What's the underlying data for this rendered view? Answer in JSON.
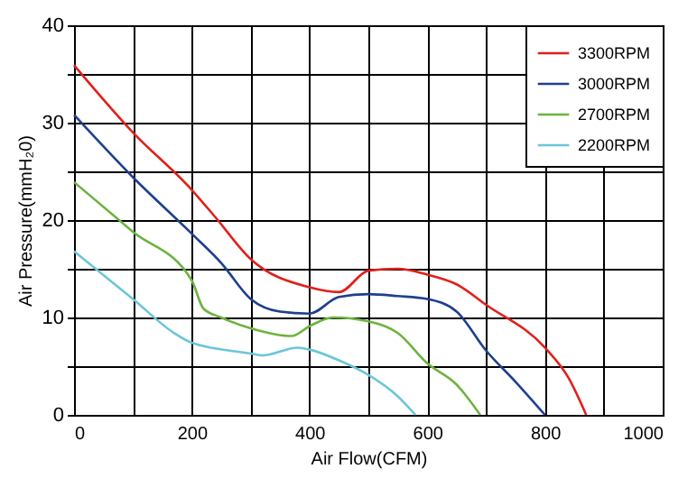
{
  "chart_data": {
    "type": "line",
    "xlabel": "Air Flow(CFM)",
    "ylabel": "Air Pressure(mmH₂0)",
    "xlim": [
      0,
      1000
    ],
    "ylim": [
      0,
      40
    ],
    "xticks": [
      0,
      {
        "value": 100,
        "label": null
      },
      200,
      {
        "value": 300,
        "label": null
      },
      400,
      {
        "value": 500,
        "label": null
      },
      600,
      {
        "value": 700,
        "label": null
      },
      800,
      {
        "value": 900,
        "label": null
      },
      1000
    ],
    "yticks": [
      0,
      {
        "value": 5,
        "label": null
      },
      10,
      {
        "value": 15,
        "label": null
      },
      20,
      {
        "value": 25,
        "label": null
      },
      30,
      {
        "value": 35,
        "label": null
      },
      40
    ],
    "grid": true,
    "legend": "top right",
    "marker": "none",
    "line_style": "solid",
    "series": [
      {
        "name": "3300RPM",
        "color": "#e0201b",
        "x": [
          0,
          100,
          200,
          240,
          300,
          400,
          450,
          500,
          550,
          600,
          650,
          700,
          800,
          840,
          870
        ],
        "values": [
          35.9,
          29,
          23.1,
          20.3,
          16,
          13.1,
          12.6,
          14.8,
          15,
          14.4,
          13.4,
          11.3,
          6.9,
          3.8,
          0
        ]
      },
      {
        "name": "3000RPM",
        "color": "#1f3f8f",
        "x": [
          0,
          100,
          200,
          250,
          300,
          350,
          400,
          450,
          500,
          550,
          600,
          650,
          700,
          750,
          800
        ],
        "values": [
          30.8,
          24.4,
          18.6,
          15.6,
          11.9,
          10.6,
          10.4,
          12.1,
          12.4,
          12.2,
          11.9,
          10.6,
          6.6,
          3.4,
          0
        ]
      },
      {
        "name": "2700RPM",
        "color": "#6db33f",
        "x": [
          0,
          100,
          200,
          220,
          250,
          300,
          370,
          400,
          440,
          500,
          550,
          600,
          650,
          690
        ],
        "values": [
          23.9,
          18.8,
          13.8,
          10.9,
          10,
          8.9,
          8.1,
          9.1,
          10,
          9.6,
          8.4,
          5.3,
          3.1,
          0
        ]
      },
      {
        "name": "2200RPM",
        "color": "#6cc6d9",
        "x": [
          0,
          100,
          170,
          200,
          300,
          320,
          380,
          400,
          450,
          500,
          550,
          580
        ],
        "values": [
          16.8,
          11.9,
          8.4,
          7.4,
          6.3,
          6.1,
          6.9,
          6.7,
          5.6,
          4.1,
          1.9,
          0
        ]
      }
    ]
  }
}
